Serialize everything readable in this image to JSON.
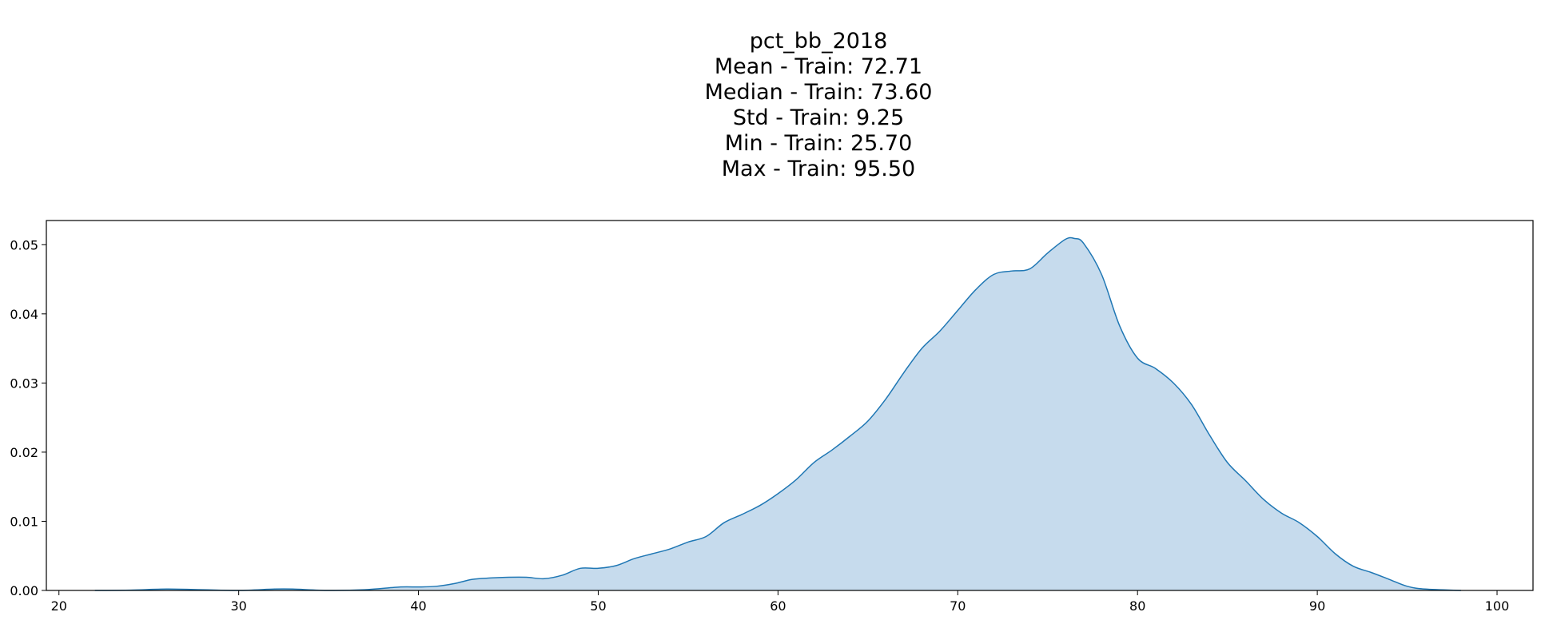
{
  "chart_data": {
    "type": "area",
    "title_lines": [
      "pct_bb_2018",
      "Mean - Train: 72.71",
      "Median - Train: 73.60",
      "Std - Train: 9.25",
      "Min - Train: 25.70",
      "Max - Train: 95.50"
    ],
    "xlabel": "",
    "ylabel": "",
    "xlim": [
      19.3,
      102
    ],
    "ylim": [
      0,
      0.0535
    ],
    "xticks": [
      20,
      30,
      40,
      50,
      60,
      70,
      80,
      90,
      100
    ],
    "xtick_labels": [
      "20",
      "30",
      "40",
      "50",
      "60",
      "70",
      "80",
      "90",
      "100"
    ],
    "yticks": [
      0,
      0.01,
      0.02,
      0.03,
      0.04,
      0.05
    ],
    "ytick_labels": [
      "0.00",
      "0.01",
      "0.02",
      "0.03",
      "0.04",
      "0.05"
    ],
    "grid": false,
    "line_color": "#1f77b4",
    "fill_color": "#c6dbed",
    "series": [
      {
        "x": [
          22,
          24,
          26,
          28,
          30,
          32,
          33,
          35,
          37,
          39,
          40,
          41,
          42,
          43,
          44,
          45,
          46,
          47,
          48,
          49,
          50,
          51,
          52,
          53,
          54,
          55,
          56,
          57,
          58,
          59,
          60,
          61,
          62,
          63,
          64,
          65,
          66,
          67,
          68,
          69,
          70,
          71,
          72,
          73,
          74,
          75,
          76,
          76.5,
          77,
          78,
          79,
          80,
          81,
          82,
          83,
          84,
          85,
          86,
          87,
          88,
          89,
          90,
          91,
          92,
          93,
          94,
          95,
          96,
          98
        ],
        "y": [
          0,
          5e-05,
          0.0002,
          0.0001,
          0,
          0.0002,
          0.0002,
          0,
          0.0001,
          0.0005,
          0.0005,
          0.0006,
          0.001,
          0.0016,
          0.0018,
          0.0019,
          0.0019,
          0.0017,
          0.0022,
          0.0032,
          0.0032,
          0.0036,
          0.0046,
          0.0053,
          0.006,
          0.007,
          0.0078,
          0.0098,
          0.011,
          0.0123,
          0.014,
          0.016,
          0.0185,
          0.0203,
          0.0223,
          0.0245,
          0.0277,
          0.0315,
          0.035,
          0.0375,
          0.0405,
          0.0435,
          0.0457,
          0.0462,
          0.0465,
          0.0488,
          0.0508,
          0.0509,
          0.0502,
          0.0457,
          0.0383,
          0.0336,
          0.0321,
          0.03,
          0.0269,
          0.0225,
          0.0185,
          0.0159,
          0.0132,
          0.0112,
          0.0098,
          0.0078,
          0.0053,
          0.0035,
          0.0026,
          0.0016,
          0.0006,
          0.0002,
          0
        ]
      }
    ]
  }
}
